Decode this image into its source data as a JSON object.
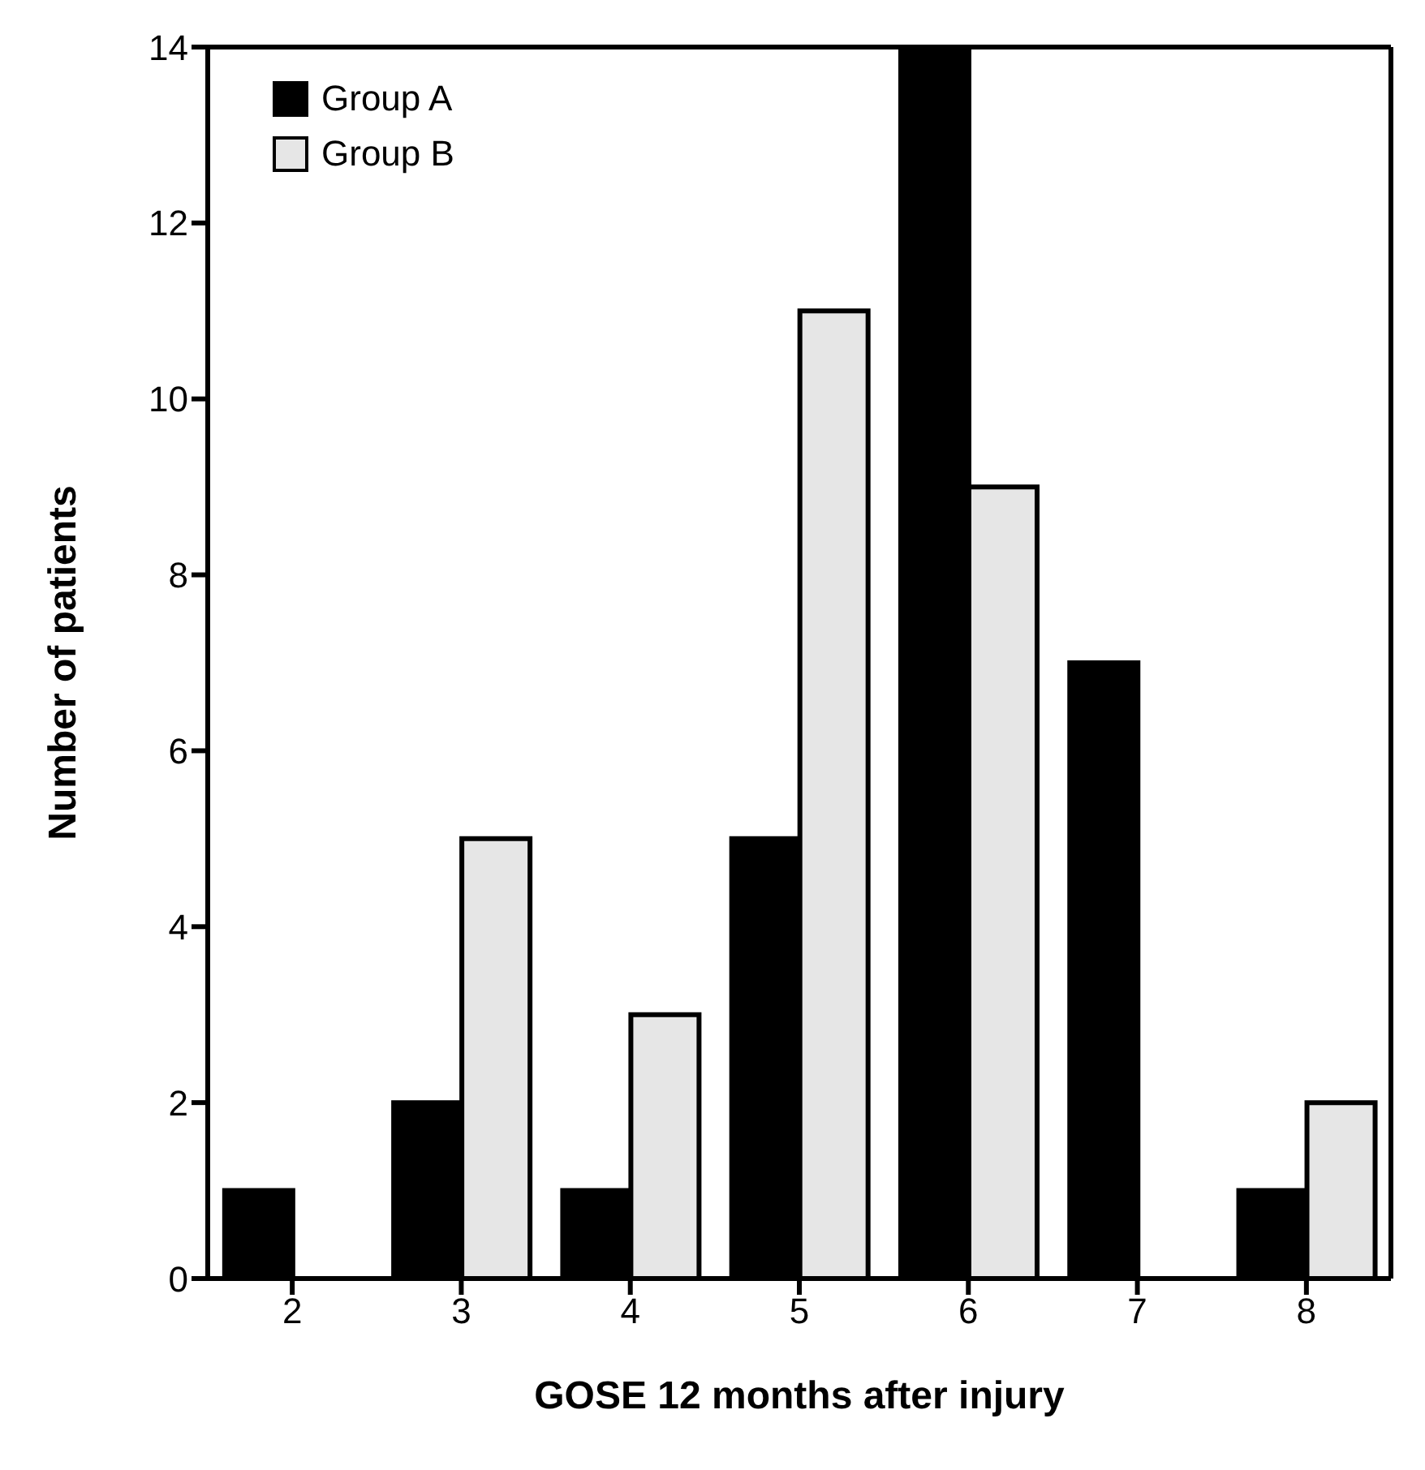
{
  "chart_data": {
    "type": "bar",
    "xlabel": "GOSE 12 months after injury",
    "ylabel": "Number of patients",
    "categories": [
      "2",
      "3",
      "4",
      "5",
      "6",
      "7",
      "8"
    ],
    "series": [
      {
        "name": "Group A",
        "color": "#000000",
        "values": [
          1,
          2,
          1,
          5,
          14,
          7,
          1
        ]
      },
      {
        "name": "Group B",
        "color": "#e6e6e6",
        "values": [
          0,
          5,
          3,
          11,
          9,
          0,
          2
        ]
      }
    ],
    "ylim": [
      0,
      14
    ],
    "yticks": [
      0,
      2,
      4,
      6,
      8,
      10,
      12,
      14
    ],
    "grid": false,
    "legend": "top left"
  }
}
